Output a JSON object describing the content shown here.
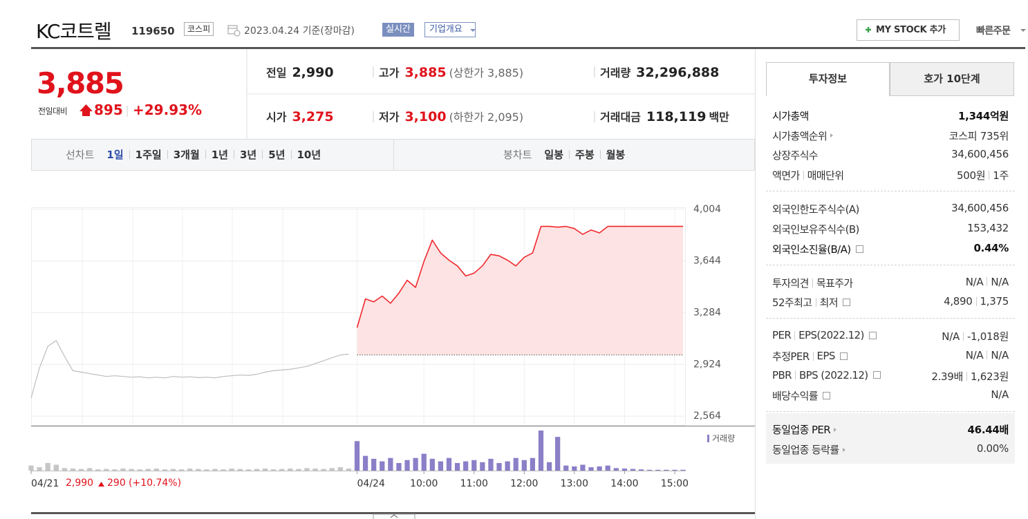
{
  "header": {
    "name": "KC코트렐",
    "code": "119650",
    "market": "코스피",
    "date": "2023.04.24 기준(장마감)",
    "realtime": "실시간",
    "company": "기업개요",
    "mystock": "MY STOCK 추가",
    "quick_order": "빠른주문"
  },
  "quote": {
    "price": "3,885",
    "change_label": "전일대비",
    "change": "895",
    "change_pct": "+29.93%",
    "cells": [
      {
        "label": "전일",
        "value": "2,990",
        "color": "#222"
      },
      {
        "label": "고가",
        "value": "3,885",
        "note": "(상한가 3,885)",
        "color": "#e0121b"
      },
      {
        "label": "거래량",
        "value": "32,296,888",
        "color": "#222"
      },
      {
        "label": "시가",
        "value": "3,275",
        "color": "#e0121b"
      },
      {
        "label": "저가",
        "value": "3,100",
        "note": "(하한가 2,095)",
        "color": "#e0121b"
      },
      {
        "label": "거래대금",
        "value": "118,119",
        "unit": "백만",
        "color": "#222"
      }
    ]
  },
  "period_tabs": {
    "line_label": "선차트",
    "line": [
      "1일",
      "1주일",
      "3개월",
      "1년",
      "3년",
      "5년",
      "10년"
    ],
    "selected": 0,
    "candle_label": "봉차트",
    "candle": [
      "일봉",
      "주봉",
      "월봉"
    ]
  },
  "chart_data": {
    "type": "line",
    "categories": [
      "04/21",
      null,
      null,
      null,
      null,
      null,
      null,
      null,
      null,
      null,
      null,
      null,
      null,
      null,
      null,
      null,
      null,
      null,
      null,
      null,
      null,
      null,
      null,
      null,
      null,
      null,
      null,
      null,
      null,
      null,
      null,
      null,
      null,
      null,
      null,
      null,
      null,
      null,
      null,
      "04/24",
      null,
      null,
      null,
      null,
      null,
      null,
      null,
      "10:00",
      null,
      null,
      null,
      null,
      null,
      "11:00",
      null,
      null,
      null,
      null,
      null,
      "12:00",
      null,
      null,
      null,
      null,
      null,
      "13:00",
      null,
      null,
      null,
      null,
      null,
      "14:00",
      null,
      null,
      null,
      null,
      null,
      "15:00",
      null
    ],
    "series": [
      {
        "color": "#bdbdbd",
        "values": [
          2690,
          2900,
          3050,
          3090,
          2980,
          2880,
          2870,
          2860,
          2850,
          2840,
          2845,
          2840,
          2835,
          2838,
          2830,
          2835,
          2830,
          2840,
          2835,
          2838,
          2832,
          2835,
          2830,
          2840,
          2845,
          2850,
          2848,
          2855,
          2870,
          2880,
          2885,
          2890,
          2900,
          2910,
          2930,
          2950,
          2970,
          2990,
          2995,
          null,
          null,
          null,
          null,
          null,
          null,
          null,
          null,
          null,
          null,
          null,
          null,
          null,
          null,
          null,
          null,
          null,
          null,
          null,
          null,
          null,
          null,
          null,
          null,
          null,
          null,
          null,
          null,
          null,
          null,
          null,
          null,
          null,
          null,
          null,
          null,
          null,
          null,
          null,
          null
        ]
      },
      {
        "color": "#f0282d",
        "fill": "#fde3e3",
        "values": [
          null,
          null,
          null,
          null,
          null,
          null,
          null,
          null,
          null,
          null,
          null,
          null,
          null,
          null,
          null,
          null,
          null,
          null,
          null,
          null,
          null,
          null,
          null,
          null,
          null,
          null,
          null,
          null,
          null,
          null,
          null,
          null,
          null,
          null,
          null,
          null,
          null,
          null,
          null,
          3180,
          3380,
          3360,
          3400,
          3350,
          3420,
          3510,
          3460,
          3640,
          3790,
          3700,
          3650,
          3610,
          3540,
          3560,
          3610,
          3690,
          3680,
          3650,
          3610,
          3670,
          3700,
          3885,
          3885,
          3880,
          3885,
          3870,
          3830,
          3860,
          3840,
          3885,
          3885,
          3885,
          3885,
          3885,
          3885,
          3885,
          3885,
          3885,
          3885
        ]
      }
    ],
    "prev_summary": {
      "close": {
        "value": 2990,
        "label": "2,990"
      },
      "change": "290",
      "change_pct": "(+10.74%)"
    },
    "volume": {
      "name": "거래량",
      "color": "#8b7fc7",
      "prev_color": "#c6c6c6",
      "values": [
        12,
        8,
        18,
        14,
        6,
        5,
        4,
        6,
        3,
        4,
        3,
        5,
        4,
        3,
        4,
        5,
        3,
        4,
        3,
        5,
        4,
        3,
        4,
        3,
        5,
        4,
        3,
        4,
        5,
        3,
        4,
        5,
        4,
        6,
        5,
        4,
        6,
        8,
        5,
        70,
        35,
        28,
        22,
        30,
        18,
        25,
        30,
        40,
        28,
        22,
        30,
        18,
        22,
        25,
        20,
        28,
        18,
        22,
        30,
        25,
        30,
        95,
        20,
        80,
        12,
        10,
        14,
        8,
        10,
        12,
        6,
        5,
        4,
        3,
        2,
        2,
        2,
        2,
        2
      ]
    },
    "ylim": [
      2497,
      4018
    ],
    "yticks": [
      {
        "value": 2564,
        "label": "2,564"
      },
      {
        "value": 2924,
        "label": "2,924"
      },
      {
        "value": 3284,
        "label": "3,284"
      },
      {
        "value": 3644,
        "label": "3,644"
      },
      {
        "value": 4004,
        "label": "4,004"
      }
    ],
    "grid": true
  },
  "info": {
    "tabs": [
      "투자정보",
      "호가 10단계"
    ],
    "selected": 0,
    "sections": [
      {
        "rows": [
          {
            "label": [
              "시가총액"
            ],
            "value": [
              "1,344억원"
            ],
            "bold": true
          },
          {
            "label": [
              "시가총액순위"
            ],
            "arrow": true,
            "value": [
              "코스피 735위"
            ]
          },
          {
            "label": [
              "상장주식수"
            ],
            "value": [
              "34,600,456"
            ]
          },
          {
            "label": [
              "액면가",
              "매매단위"
            ],
            "value": [
              "500원",
              "1주"
            ]
          }
        ]
      },
      {
        "rows": [
          {
            "label": [
              "외국인한도주식수(A)"
            ],
            "value": [
              "34,600,456"
            ]
          },
          {
            "label": [
              "외국인보유주식수(B)"
            ],
            "value": [
              "153,432"
            ]
          },
          {
            "label": [
              "외국인소진율(B/A)"
            ],
            "help": true,
            "value": [
              "0.44%"
            ],
            "bold": true
          }
        ]
      },
      {
        "rows": [
          {
            "label": [
              "투자의견",
              "목표주가"
            ],
            "value": [
              "N/A",
              "N/A"
            ]
          },
          {
            "label": [
              "52주최고",
              "최저"
            ],
            "help": true,
            "value": [
              "4,890",
              "1,375"
            ]
          }
        ]
      },
      {
        "rows": [
          {
            "label": [
              "PER",
              "EPS(2022.12)"
            ],
            "help": true,
            "value": [
              "N/A",
              "-1,018원"
            ]
          },
          {
            "label": [
              "추정PER",
              "EPS"
            ],
            "help": true,
            "value": [
              "N/A",
              "N/A"
            ]
          },
          {
            "label": [
              "PBR",
              "BPS (2022.12)"
            ],
            "help": true,
            "value": [
              "2.39배",
              "1,623원"
            ]
          },
          {
            "label": [
              "배당수익률"
            ],
            "help": true,
            "value": [
              "N/A"
            ]
          }
        ]
      },
      {
        "shaded": true,
        "rows": [
          {
            "label": [
              "동일업종 PER"
            ],
            "arrow": true,
            "value": [
              "46.44배"
            ],
            "bold": true
          },
          {
            "label": [
              "동일업종 등락률"
            ],
            "arrow": true,
            "value": [
              "0.00%"
            ]
          }
        ]
      }
    ]
  }
}
